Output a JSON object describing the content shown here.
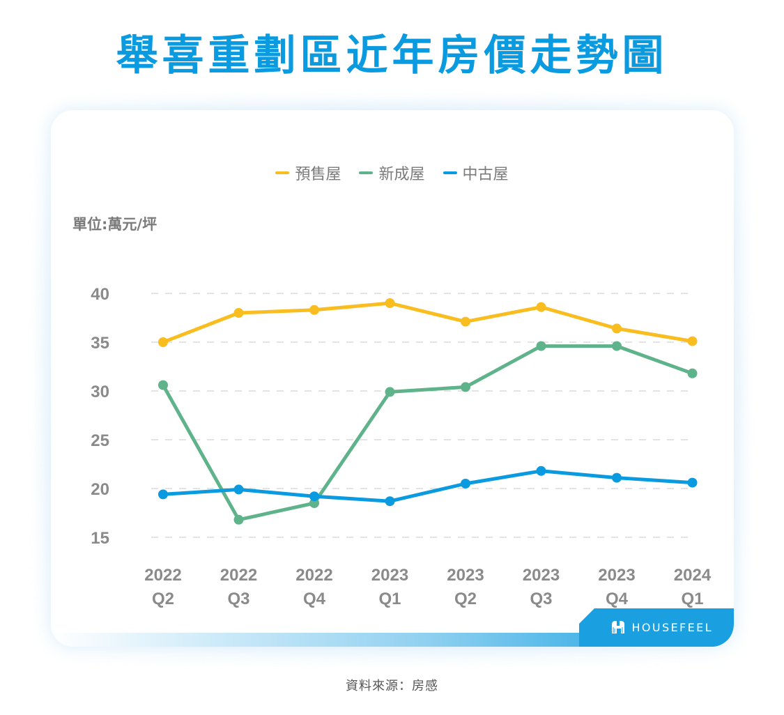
{
  "title": "舉喜重劃區近年房價走勢圖",
  "unit_label": "單位:萬元/坪",
  "source": "資料來源：房感",
  "brand": {
    "name": "HOUSEFEEL",
    "icon": "housefeel-logo-icon"
  },
  "legend": [
    {
      "label": "預售屋",
      "color": "#f9bd1f"
    },
    {
      "label": "新成屋",
      "color": "#5fb38a"
    },
    {
      "label": "中古屋",
      "color": "#0a9ae0"
    }
  ],
  "chart_data": {
    "type": "line",
    "title": "舉喜重劃區近年房價走勢圖",
    "xlabel": "",
    "ylabel": "單位:萬元/坪",
    "categories": [
      "2022 Q2",
      "2022 Q3",
      "2022 Q4",
      "2023 Q1",
      "2023 Q2",
      "2023 Q3",
      "2023 Q4",
      "2024 Q1"
    ],
    "category_lines": [
      [
        "2022",
        "Q2"
      ],
      [
        "2022",
        "Q3"
      ],
      [
        "2022",
        "Q4"
      ],
      [
        "2023",
        "Q1"
      ],
      [
        "2023",
        "Q2"
      ],
      [
        "2023",
        "Q3"
      ],
      [
        "2023",
        "Q4"
      ],
      [
        "2024",
        "Q1"
      ]
    ],
    "yticks": [
      40,
      35,
      30,
      25,
      20,
      15
    ],
    "ylim": [
      15,
      40
    ],
    "grid": "horizontal-dashed",
    "legend_position": "top",
    "series": [
      {
        "name": "預售屋",
        "color": "#f9bd1f",
        "values": [
          35.0,
          38.0,
          38.3,
          39.0,
          37.1,
          38.6,
          36.4,
          35.1
        ]
      },
      {
        "name": "新成屋",
        "color": "#5fb38a",
        "values": [
          30.6,
          16.8,
          18.5,
          29.9,
          30.4,
          34.6,
          34.6,
          31.8
        ]
      },
      {
        "name": "中古屋",
        "color": "#0a9ae0",
        "values": [
          19.4,
          19.9,
          19.2,
          18.7,
          20.5,
          21.8,
          21.1,
          20.6
        ]
      }
    ]
  }
}
